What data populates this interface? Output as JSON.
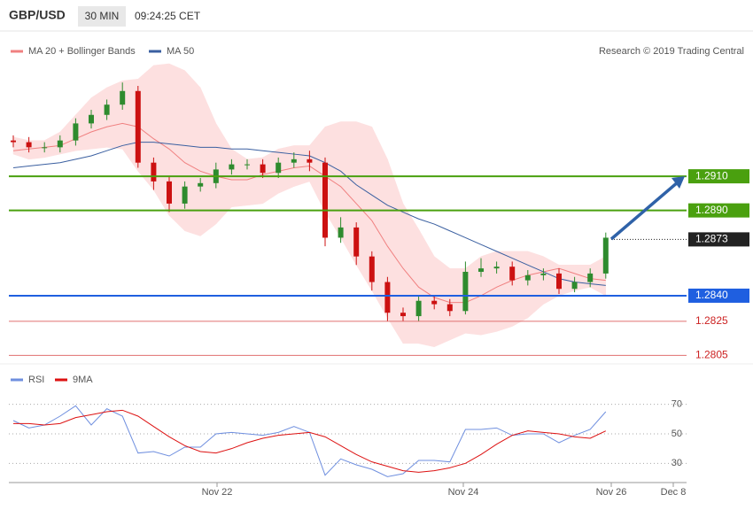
{
  "header": {
    "symbol": "GBP/USD",
    "interval": "30 MIN",
    "time": "09:24:25 CET"
  },
  "chart_data": [
    {
      "type": "candlestick",
      "credit": "Research © 2019 Trading Central",
      "up_color": "#2e8b2e",
      "down_color": "#cc1111",
      "ylim": [
        1.28,
        1.299
      ],
      "open": [
        1.2931,
        1.293,
        1.2927,
        1.2927,
        1.2931,
        1.2941,
        1.2946,
        1.2952,
        1.296,
        1.2918,
        1.2907,
        1.2894,
        1.2904,
        1.2906,
        1.2914,
        1.2917,
        1.2917,
        1.2912,
        1.2918,
        1.292,
        1.2918,
        1.2874,
        1.288,
        1.2863,
        1.2848,
        1.283,
        1.2828,
        1.2837,
        1.2835,
        1.2831,
        1.2854,
        1.2856,
        1.2857,
        1.2849,
        1.2852,
        1.2853,
        1.2844,
        1.2848,
        1.2853
      ],
      "high": [
        1.2934,
        1.2933,
        1.293,
        1.2934,
        1.2944,
        1.2949,
        1.2955,
        1.2965,
        1.2963,
        1.2921,
        1.291,
        1.2907,
        1.2909,
        1.2918,
        1.292,
        1.292,
        1.292,
        1.2921,
        1.2924,
        1.2925,
        1.2921,
        1.2886,
        1.2883,
        1.2866,
        1.2851,
        1.2833,
        1.284,
        1.284,
        1.2838,
        1.286,
        1.2862,
        1.286,
        1.286,
        1.2855,
        1.2856,
        1.2856,
        1.2851,
        1.2856,
        1.2877
      ],
      "low": [
        1.2927,
        1.2924,
        1.2924,
        1.2924,
        1.2928,
        1.2938,
        1.2943,
        1.2949,
        1.2915,
        1.2902,
        1.2889,
        1.2891,
        1.2901,
        1.2903,
        1.2911,
        1.2914,
        1.2909,
        1.2909,
        1.2915,
        1.2913,
        1.2869,
        1.2871,
        1.2858,
        1.2843,
        1.2825,
        1.2825,
        1.2825,
        1.2832,
        1.2828,
        1.2829,
        1.2851,
        1.2853,
        1.2846,
        1.2846,
        1.2849,
        1.2841,
        1.2842,
        1.2845,
        1.285
      ],
      "close": [
        1.293,
        1.2927,
        1.2927,
        1.2931,
        1.2941,
        1.2946,
        1.2952,
        1.296,
        1.2918,
        1.2907,
        1.2894,
        1.2904,
        1.2906,
        1.2914,
        1.2917,
        1.2917,
        1.2912,
        1.2918,
        1.292,
        1.2918,
        1.2874,
        1.288,
        1.2863,
        1.2848,
        1.283,
        1.2828,
        1.2837,
        1.2835,
        1.2831,
        1.2854,
        1.2856,
        1.2857,
        1.2849,
        1.2852,
        1.2853,
        1.2844,
        1.2848,
        1.2853,
        1.2874
      ],
      "series": [
        {
          "name": "MA 20 + Bollinger Bands",
          "color": "#f08080",
          "band_color": "#fde0e0",
          "values": [
            1.2925,
            1.2926,
            1.2927,
            1.2928,
            1.2932,
            1.2936,
            1.2939,
            1.2941,
            1.2939,
            1.2932,
            1.2926,
            1.2918,
            1.2913,
            1.291,
            1.2908,
            1.2908,
            1.2911,
            1.2913,
            1.2915,
            1.2916,
            1.291,
            1.2904,
            1.2894,
            1.2884,
            1.2869,
            1.2856,
            1.2845,
            1.2839,
            1.2836,
            1.2836,
            1.284,
            1.2845,
            1.2849,
            1.2852,
            1.2854,
            1.2856,
            1.2853,
            1.285,
            1.2849
          ],
          "upper": [
            1.2933,
            1.2931,
            1.2931,
            1.2936,
            1.2946,
            1.2956,
            1.2962,
            1.2966,
            1.2967,
            1.2975,
            1.2976,
            1.2972,
            1.2962,
            1.2941,
            1.2926,
            1.292,
            1.2921,
            1.2926,
            1.2928,
            1.2928,
            1.2939,
            1.2942,
            1.2942,
            1.2939,
            1.292,
            1.2894,
            1.2879,
            1.2863,
            1.2856,
            1.2856,
            1.2863,
            1.2866,
            1.2866,
            1.2866,
            1.2863,
            1.2858,
            1.2858,
            1.2858,
            1.2863
          ],
          "lower": [
            1.2923,
            1.292,
            1.2921,
            1.2923,
            1.2925,
            1.2926,
            1.2927,
            1.2926,
            1.2913,
            1.2902,
            1.2887,
            1.2878,
            1.2875,
            1.2882,
            1.2892,
            1.2893,
            1.2894,
            1.29,
            1.2904,
            1.2907,
            1.2889,
            1.2874,
            1.2858,
            1.2843,
            1.2827,
            1.2812,
            1.2812,
            1.281,
            1.2814,
            1.2818,
            1.2817,
            1.2819,
            1.2822,
            1.2827,
            1.2835,
            1.284,
            1.2843,
            1.2845,
            1.284
          ]
        },
        {
          "name": "MA 50",
          "color": "#3a5fa0",
          "values": [
            1.2915,
            1.2916,
            1.2917,
            1.2918,
            1.292,
            1.2922,
            1.2925,
            1.2928,
            1.293,
            1.293,
            1.2929,
            1.2928,
            1.2927,
            1.2927,
            1.2926,
            1.2926,
            1.2925,
            1.2924,
            1.2923,
            1.2922,
            1.2918,
            1.2913,
            1.2905,
            1.2899,
            1.2893,
            1.2889,
            1.2885,
            1.2882,
            1.2878,
            1.2874,
            1.287,
            1.2866,
            1.2862,
            1.2858,
            1.2854,
            1.285,
            1.2848,
            1.2847,
            1.2846
          ]
        }
      ],
      "levels": [
        {
          "value": 1.291,
          "label": "1.2910"
        },
        {
          "value": 1.289,
          "label": "1.2890"
        },
        1.2873,
        {
          "value": 1.284,
          "label": "1.2840"
        },
        1.2825,
        1.2805
      ],
      "level_colors": [
        "#4aa00f",
        "#4aa00f",
        "#222222",
        "#1f5fe0",
        "#e07070",
        "#e07070"
      ],
      "level_styles": [
        "box",
        "box",
        "box",
        "box",
        "text",
        "text"
      ]
    },
    {
      "type": "line",
      "series": [
        {
          "name": "RSI",
          "color": "#6f8fdf",
          "values": [
            59,
            54,
            56,
            62,
            69,
            56,
            67,
            62,
            37,
            38,
            35,
            41,
            41,
            50,
            51,
            50,
            49,
            51,
            55,
            51,
            22,
            33,
            29,
            26,
            21,
            23,
            32,
            32,
            31,
            53,
            53,
            54,
            49,
            50,
            50,
            44,
            49,
            53,
            65
          ]
        },
        {
          "name": "9MA",
          "color": "#dd1111",
          "values": [
            57,
            57,
            56,
            57,
            61,
            63,
            65,
            66,
            62,
            55,
            48,
            42,
            38,
            37,
            40,
            44,
            47,
            49,
            50,
            51,
            48,
            42,
            36,
            31,
            28,
            25,
            24,
            25,
            27,
            30,
            36,
            43,
            49,
            52,
            51,
            50,
            48,
            47,
            52
          ]
        }
      ],
      "ylim": [
        20,
        92
      ],
      "yticks": [
        70,
        50,
        30
      ],
      "grid": true,
      "xticks": [
        "Nov 22",
        "Nov 24",
        "Nov 26",
        "Dec 8"
      ]
    }
  ]
}
